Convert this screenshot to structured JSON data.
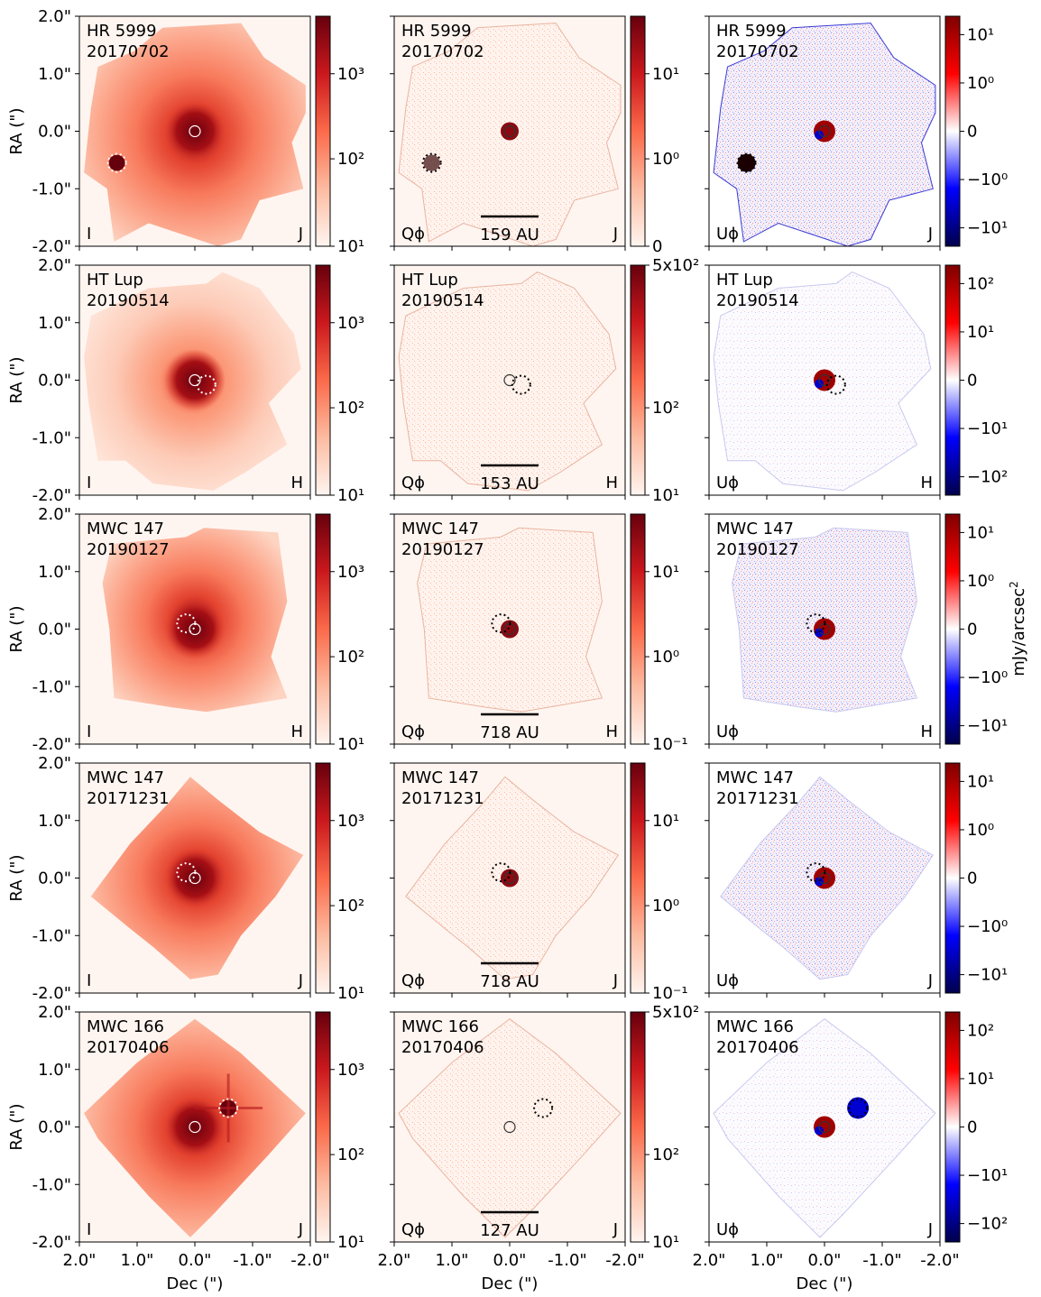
{
  "figure": {
    "x_axis_label": "Dec (\")",
    "y_axis_label": "RA (\")",
    "unit_label": "mJy/arcsec",
    "unit_exponent": "2"
  },
  "chart_data": {
    "type": "heatmap",
    "description_of_values": "Polarimetric imaging grid: 5 targets/epochs x 3 Stokes maps (I, Q-phi, U-phi)",
    "x_ticks": [
      "2.0\"",
      "1.0\"",
      "0.0\"",
      "-1.0\"",
      "-2.0\""
    ],
    "y_ticks": [
      "2.0\"",
      "1.0\"",
      "0.0\"",
      "-1.0\"",
      "-2.0\""
    ],
    "xlim": [
      2.0,
      -2.0
    ],
    "ylim": [
      -2.0,
      2.0
    ],
    "rows": [
      {
        "target": "HR 5999",
        "date": "20170702",
        "band": "J",
        "scale_bar": "159 AU",
        "companion": [
          1.35,
          -0.55
        ],
        "I_ticks": [
          "10³",
          "10²",
          "10¹"
        ],
        "Q_ticks": [
          "10¹",
          "10⁰",
          "0"
        ],
        "U_ticks": [
          "10¹",
          "10⁰",
          "0",
          "−10⁰",
          "−10¹"
        ]
      },
      {
        "target": "HT Lup",
        "date": "20190514",
        "band": "H",
        "scale_bar": "153 AU",
        "companion": [
          -0.2,
          -0.08
        ],
        "I_ticks": [
          "10³",
          "10²",
          "10¹"
        ],
        "Q_ticks": [
          "5x10²",
          "10²",
          "10¹"
        ],
        "U_ticks": [
          "10²",
          "10¹",
          "0",
          "−10¹",
          "−10²"
        ]
      },
      {
        "target": "MWC 147",
        "date": "20190127",
        "band": "H",
        "scale_bar": "718 AU",
        "companion": [
          0.15,
          0.1
        ],
        "I_ticks": [
          "10³",
          "10²",
          "10¹"
        ],
        "Q_ticks": [
          "10¹",
          "10⁰",
          "10⁻¹"
        ],
        "U_ticks": [
          "10¹",
          "10⁰",
          "0",
          "−10⁰",
          "−10¹"
        ]
      },
      {
        "target": "MWC 147",
        "date": "20171231",
        "band": "J",
        "scale_bar": "718 AU",
        "companion": [
          0.15,
          0.1
        ],
        "I_ticks": [
          "10³",
          "10²",
          "10¹"
        ],
        "Q_ticks": [
          "10¹",
          "10⁰",
          "10⁻¹"
        ],
        "U_ticks": [
          "10¹",
          "10⁰",
          "0",
          "−10⁰",
          "−10¹"
        ]
      },
      {
        "target": "MWC 166",
        "date": "20170406",
        "band": "J",
        "scale_bar": "127 AU",
        "companion": [
          -0.58,
          0.33
        ],
        "I_ticks": [
          "10³",
          "10²",
          "10¹"
        ],
        "Q_ticks": [
          "5x10²",
          "10²",
          "10¹"
        ],
        "U_ticks": [
          "10²",
          "10¹",
          "0",
          "−10¹",
          "−10²"
        ]
      }
    ],
    "panel_types": [
      {
        "key": "I",
        "label": "I",
        "colormap": "Reds"
      },
      {
        "key": "Q",
        "label": "Qϕ",
        "colormap": "Reds"
      },
      {
        "key": "U",
        "label": "Uϕ",
        "colormap": "seismic"
      }
    ]
  }
}
